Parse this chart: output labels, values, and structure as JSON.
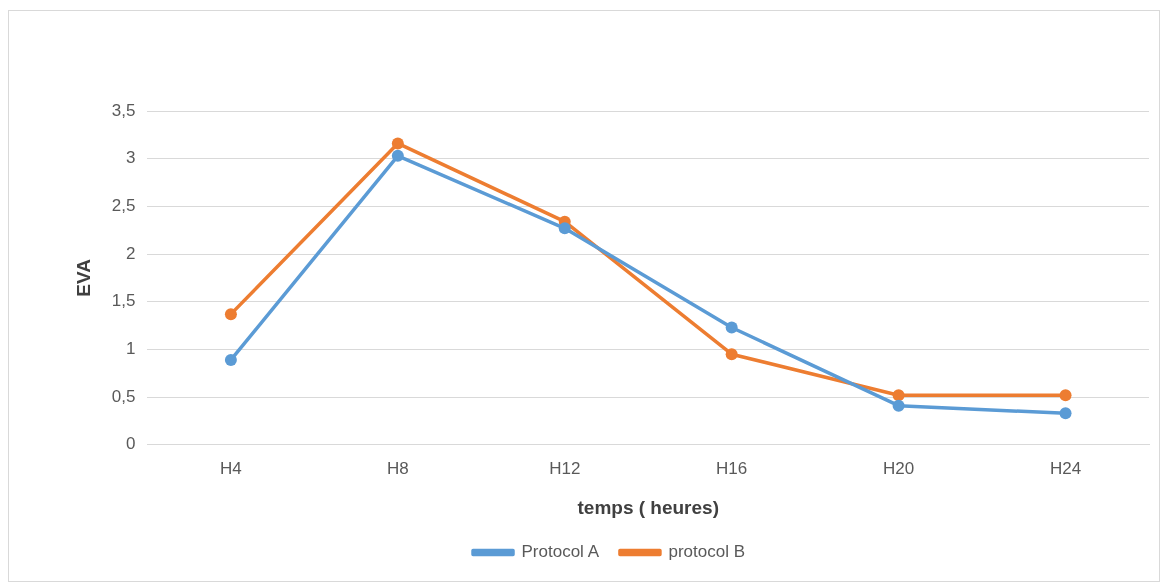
{
  "chart_data": {
    "type": "line",
    "xlabel": "temps ( heures)",
    "ylabel": "EVA",
    "categories": [
      "H4",
      "H8",
      "H12",
      "H16",
      "H20",
      "H24"
    ],
    "series": [
      {
        "name": "Protocol A",
        "color": "#5b9bd5",
        "values": [
          0.89,
          3.03,
          2.27,
          1.23,
          0.41,
          0.33
        ]
      },
      {
        "name": "protocol B",
        "color": "#ed7d31",
        "values": [
          1.37,
          3.16,
          2.34,
          0.95,
          0.52,
          0.52
        ]
      }
    ],
    "ylim": [
      0,
      3.5
    ],
    "yticks": [
      {
        "value": 0,
        "label": "0"
      },
      {
        "value": 0.5,
        "label": "0,5"
      },
      {
        "value": 1,
        "label": "1"
      },
      {
        "value": 1.5,
        "label": "1,5"
      },
      {
        "value": 2,
        "label": "2"
      },
      {
        "value": 2.5,
        "label": "2,5"
      },
      {
        "value": 3,
        "label": "3"
      },
      {
        "value": 3.5,
        "label": "3,5"
      }
    ],
    "grid": "y",
    "legend": "bottom",
    "marker": "circle",
    "line_style": "solid"
  }
}
